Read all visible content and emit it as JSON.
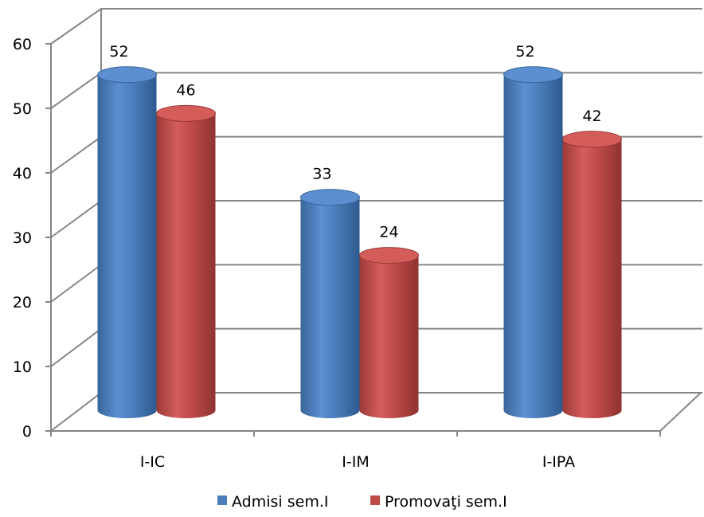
{
  "chart_data": {
    "type": "bar",
    "title": "",
    "xlabel": "",
    "ylabel": "",
    "ylim": [
      0,
      60
    ],
    "yticks": [
      0,
      10,
      20,
      30,
      40,
      50,
      60
    ],
    "grid": true,
    "style": "3d-cylinder",
    "legend_position": "bottom",
    "categories": [
      "I-IC",
      "I-IM",
      "I-IPA"
    ],
    "series": [
      {
        "name": "Admisi sem.I",
        "values": [
          52,
          33,
          52
        ],
        "color": "#4a7ebb"
      },
      {
        "name": "Promovaţi sem.I",
        "values": [
          46,
          24,
          42
        ],
        "color": "#be4b48"
      }
    ]
  }
}
